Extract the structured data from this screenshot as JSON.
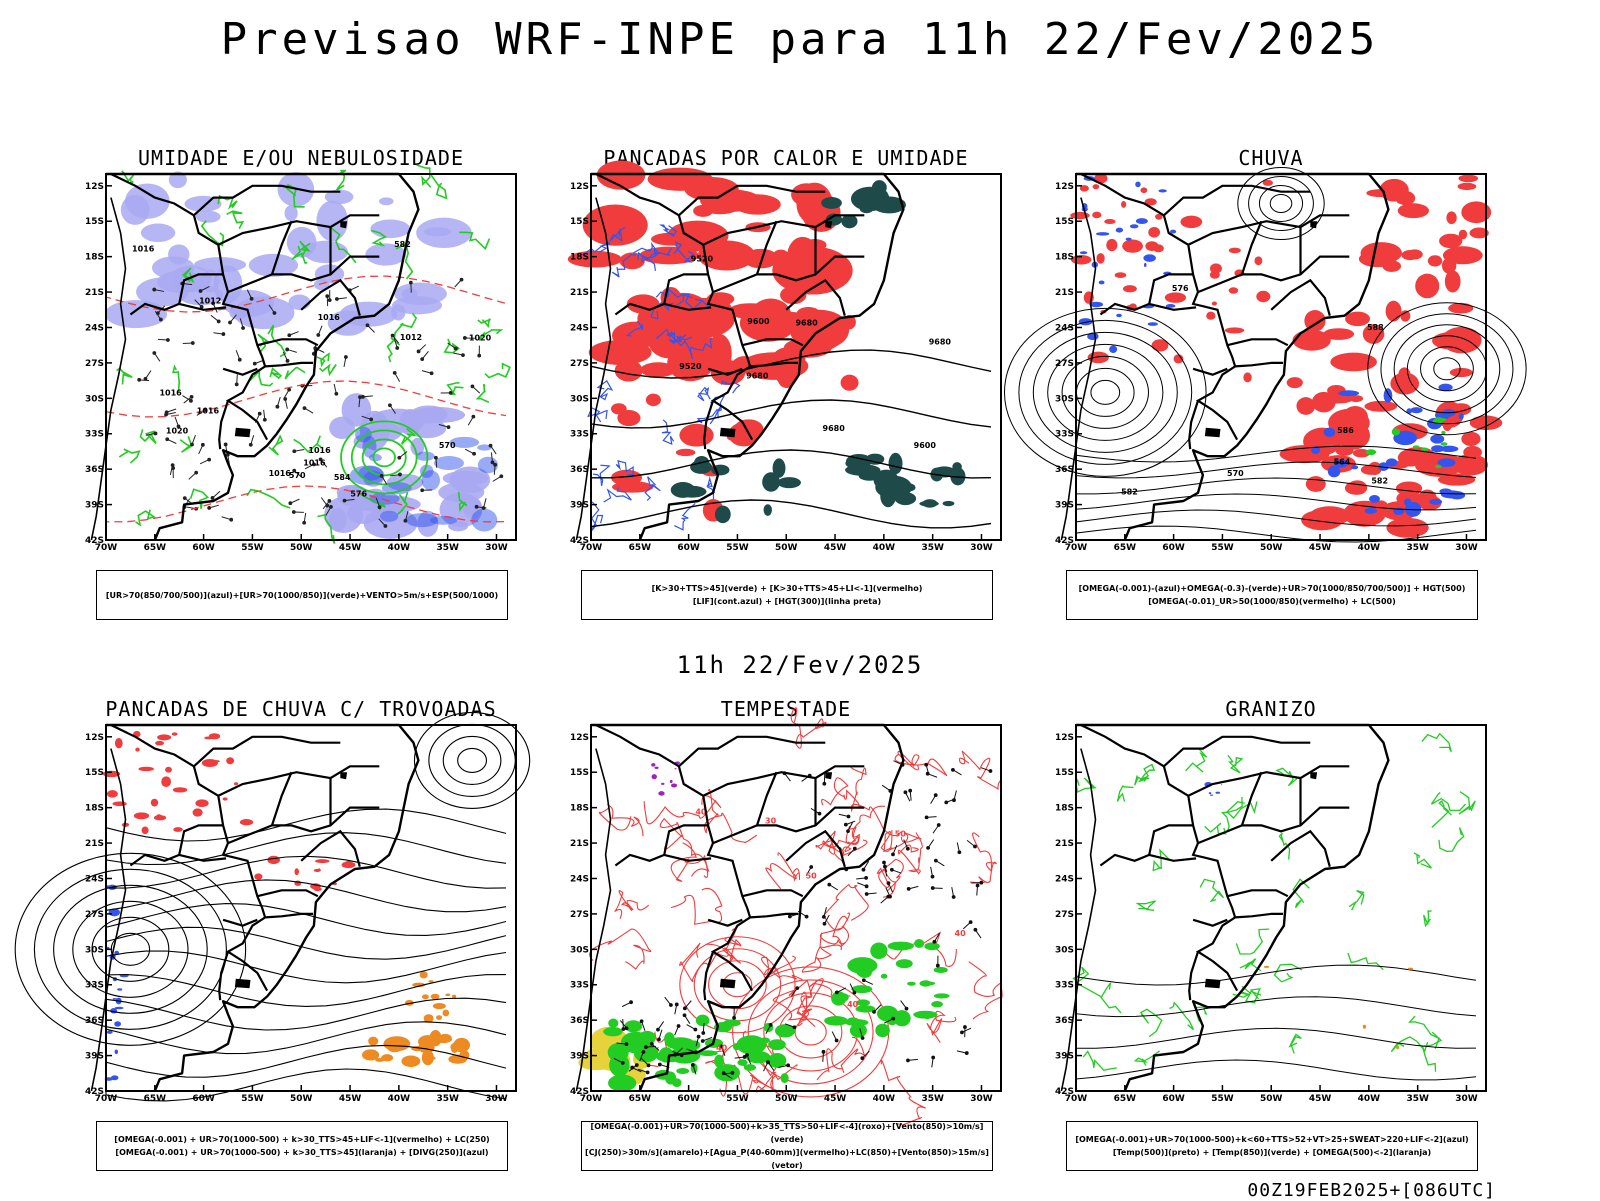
{
  "title": "Previsao WRF-INPE  para 11h 22/Fev/2025",
  "mid_title": "11h 22/Fev/2025",
  "footer": "00Z19FEB2025+[086UTC]",
  "axes": {
    "lat_ticks": [
      "12S",
      "15S",
      "18S",
      "21S",
      "24S",
      "27S",
      "30S",
      "33S",
      "36S",
      "39S",
      "42S"
    ],
    "lon_ticks": [
      "70W",
      "65W",
      "60W",
      "55W",
      "50W",
      "45W",
      "40W",
      "35W",
      "30W"
    ]
  },
  "panels": [
    {
      "title": "UMIDADE E/OU NEBULOSIDADE",
      "caption": [
        "[UR>70(850/700/500)](azul)+[UR>70(1000/850)](verde)+VENTO>5m/s+ESP(500/1000)"
      ],
      "labels": [
        "1016",
        "1016",
        "1016",
        "1016",
        "1020",
        "1020",
        "1016",
        "1016",
        "1012",
        "1012",
        "1016",
        "570",
        "570",
        "576",
        "582",
        "584"
      ]
    },
    {
      "title": "PANCADAS POR CALOR E UMIDADE",
      "caption": [
        "[K>30+TTS>45](verde) + [K>30+TTS>45+LI<-1](vermelho)",
        "[LIF](cont.azul) + [HGT(300)](linha preta)"
      ],
      "labels": [
        "9680",
        "9680",
        "9680",
        "9680",
        "9600",
        "9600",
        "9520",
        "9520"
      ]
    },
    {
      "title": "CHUVA",
      "caption": [
        "[OMEGA(-0.001)-(azul)+OMEGA(-0.3)-(verde)+UR>70(1000/850/700/500)] + HGT(500)",
        "[OMEGA(-0.01)_UR>50(1000/850)(vermelho) + LC(500)"
      ],
      "labels": [
        "588",
        "586",
        "582",
        "582",
        "576",
        "570",
        "564"
      ]
    },
    {
      "title": "PANCADAS DE CHUVA C/ TROVOADAS",
      "caption": [
        "[OMEGA(-0.001) + UR>70(1000-500) + k>30_TTS>45+LIF<-1](vermelho) + LC(250)",
        "[OMEGA(-0.001) + UR>70(1000-500) + k>30_TTS>45](laranja) + [DIVG(250)](azul)"
      ],
      "labels": []
    },
    {
      "title": "TEMPESTADE",
      "caption": [
        "[OMEGA(-0.001)+UR>70(1000-500)+k>35_TTS>50+LIF<-4](roxo)+[Vento(850)>10m/s](verde)",
        "[CJ(250)>30m/s](amarelo)+[Agua_P(40-60mm)](vermelho)+LC(850)+[Vento(850)>15m/s](vetor)"
      ],
      "labels": [
        "40",
        "40",
        "50",
        "30",
        "40",
        "40",
        "50"
      ]
    },
    {
      "title": "GRANIZO",
      "caption": [
        "[OMEGA(-0.001)+UR>70(1000-500)+k<60+TTS>52+VT>25+SWEAT>220+LIF<-2](azul)",
        "[Temp(500)](preto) + [Temp(850)](verde) + [OMEGA(500)<-2](laranja)"
      ],
      "labels": []
    }
  ],
  "colors": {
    "red": "#f03c3c",
    "green": "#22cc22",
    "blue": "#3355ee",
    "lavender": "#a9a9f2",
    "dark_teal": "#1f4a4a",
    "orange": "#ee8a22",
    "yellow": "#e6d23a",
    "purple": "#a020c0"
  }
}
